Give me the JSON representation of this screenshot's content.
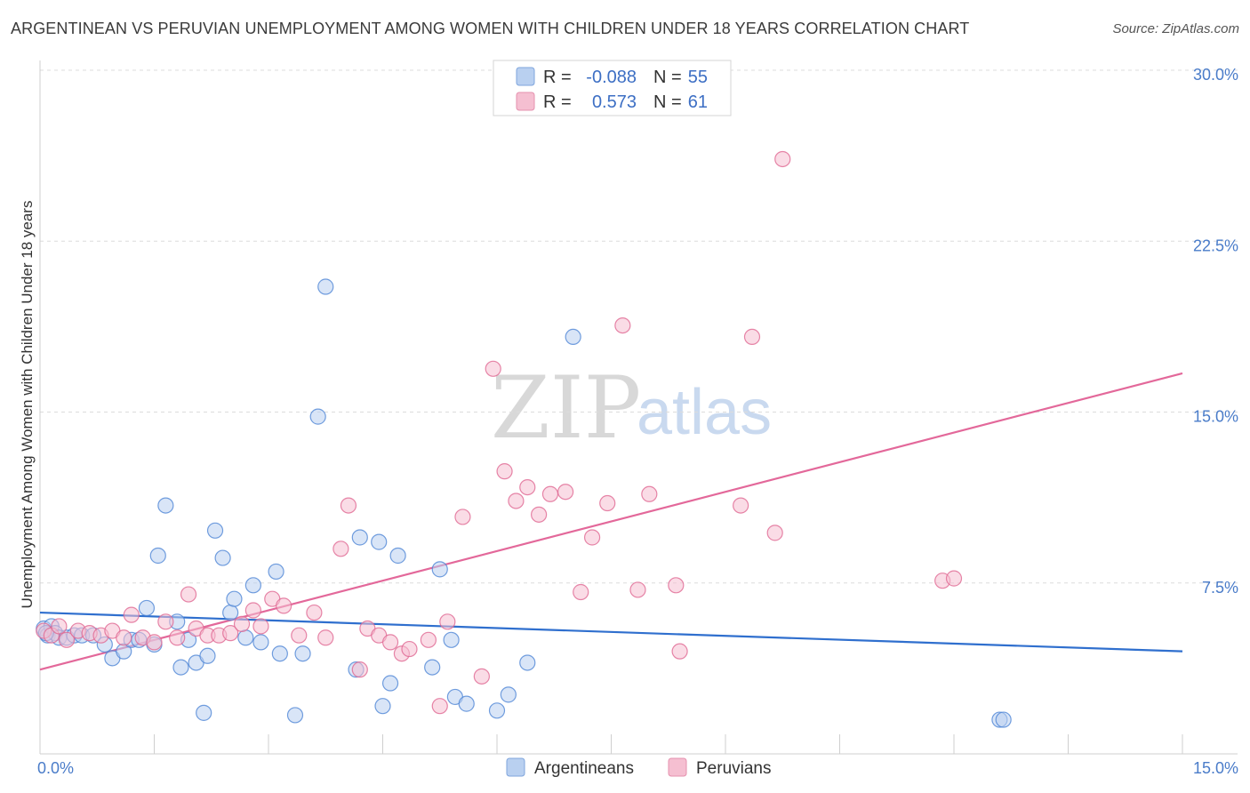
{
  "title": "ARGENTINEAN VS PERUVIAN UNEMPLOYMENT AMONG WOMEN WITH CHILDREN UNDER 18 YEARS CORRELATION CHART",
  "source": "Source: ZipAtlas.com",
  "watermark": {
    "zip": "ZIP",
    "atlas": "atlas"
  },
  "legend": {
    "rows": [
      {
        "r_label": "R =",
        "r_value": "-0.088",
        "n_label": "N =",
        "n_value": "55"
      },
      {
        "r_label": "R =",
        "r_value": "0.573",
        "n_label": "N =",
        "n_value": "61"
      }
    ]
  },
  "colors": {
    "blue": "#4f86d6",
    "blue_fill": "#b9d0f0",
    "pink": "#e06892",
    "pink_fill": "#f5bfd1"
  },
  "chart_data": {
    "type": "scatter",
    "title": "ARGENTINEAN VS PERUVIAN UNEMPLOYMENT AMONG WOMEN WITH CHILDREN UNDER 18 YEARS CORRELATION CHART",
    "xlabel": "",
    "ylabel": "Unemployment Among Women with Children Under 18 years",
    "xlim": [
      0,
      15
    ],
    "ylim": [
      0,
      30
    ],
    "x_tick_labels": [
      "0.0%",
      "15.0%"
    ],
    "y_ticks": [
      7.5,
      15.0,
      22.5,
      30.0
    ],
    "y_tick_labels": [
      "7.5%",
      "15.0%",
      "22.5%",
      "30.0%"
    ],
    "grid": true,
    "series": [
      {
        "name": "Argentineans",
        "trend": {
          "x": [
            0,
            15
          ],
          "y": [
            6.2,
            4.5
          ]
        },
        "points": [
          [
            0.05,
            5.5
          ],
          [
            0.1,
            5.2
          ],
          [
            0.15,
            5.6
          ],
          [
            0.2,
            5.3
          ],
          [
            0.25,
            5.1
          ],
          [
            0.35,
            5.1
          ],
          [
            0.45,
            5.2
          ],
          [
            0.55,
            5.2
          ],
          [
            0.7,
            5.2
          ],
          [
            0.85,
            4.8
          ],
          [
            0.95,
            4.2
          ],
          [
            1.1,
            4.5
          ],
          [
            1.2,
            5.0
          ],
          [
            1.3,
            5.0
          ],
          [
            1.4,
            6.4
          ],
          [
            1.5,
            4.8
          ],
          [
            1.55,
            8.7
          ],
          [
            1.65,
            10.9
          ],
          [
            1.8,
            5.8
          ],
          [
            1.85,
            3.8
          ],
          [
            1.95,
            5.0
          ],
          [
            2.05,
            4.0
          ],
          [
            2.15,
            1.8
          ],
          [
            2.2,
            4.3
          ],
          [
            2.3,
            9.8
          ],
          [
            2.4,
            8.6
          ],
          [
            2.5,
            6.2
          ],
          [
            2.55,
            6.8
          ],
          [
            2.7,
            5.1
          ],
          [
            2.8,
            7.4
          ],
          [
            2.9,
            4.9
          ],
          [
            3.1,
            8.0
          ],
          [
            3.15,
            4.4
          ],
          [
            3.35,
            1.7
          ],
          [
            3.45,
            4.4
          ],
          [
            3.65,
            14.8
          ],
          [
            3.75,
            20.5
          ],
          [
            4.15,
            3.7
          ],
          [
            4.2,
            9.5
          ],
          [
            4.45,
            9.3
          ],
          [
            4.5,
            2.1
          ],
          [
            4.6,
            3.1
          ],
          [
            4.7,
            8.7
          ],
          [
            5.15,
            3.8
          ],
          [
            5.25,
            8.1
          ],
          [
            5.4,
            5.0
          ],
          [
            5.45,
            2.5
          ],
          [
            5.6,
            2.2
          ],
          [
            6.0,
            1.9
          ],
          [
            6.15,
            2.6
          ],
          [
            6.4,
            4.0
          ],
          [
            7.0,
            18.3
          ],
          [
            12.6,
            1.5
          ],
          [
            12.65,
            1.5
          ],
          [
            0.08,
            5.3
          ]
        ]
      },
      {
        "name": "Peruvians",
        "trend": {
          "x": [
            0,
            15
          ],
          "y": [
            3.7,
            16.7
          ]
        },
        "points": [
          [
            0.05,
            5.4
          ],
          [
            0.15,
            5.2
          ],
          [
            0.25,
            5.6
          ],
          [
            0.35,
            5.0
          ],
          [
            0.5,
            5.4
          ],
          [
            0.65,
            5.3
          ],
          [
            0.8,
            5.2
          ],
          [
            0.95,
            5.4
          ],
          [
            1.1,
            5.1
          ],
          [
            1.2,
            6.1
          ],
          [
            1.35,
            5.1
          ],
          [
            1.5,
            4.9
          ],
          [
            1.65,
            5.8
          ],
          [
            1.8,
            5.1
          ],
          [
            1.95,
            7.0
          ],
          [
            2.05,
            5.5
          ],
          [
            2.2,
            5.2
          ],
          [
            2.35,
            5.2
          ],
          [
            2.5,
            5.3
          ],
          [
            2.65,
            5.7
          ],
          [
            2.8,
            6.3
          ],
          [
            2.9,
            5.6
          ],
          [
            3.05,
            6.8
          ],
          [
            3.2,
            6.5
          ],
          [
            3.4,
            5.2
          ],
          [
            3.6,
            6.2
          ],
          [
            3.75,
            5.1
          ],
          [
            3.95,
            9.0
          ],
          [
            4.05,
            10.9
          ],
          [
            4.2,
            3.7
          ],
          [
            4.3,
            5.5
          ],
          [
            4.45,
            5.2
          ],
          [
            4.6,
            4.9
          ],
          [
            4.75,
            4.4
          ],
          [
            4.85,
            4.6
          ],
          [
            5.1,
            5.0
          ],
          [
            5.25,
            2.1
          ],
          [
            5.35,
            5.8
          ],
          [
            5.55,
            10.4
          ],
          [
            5.8,
            3.4
          ],
          [
            5.95,
            16.9
          ],
          [
            6.1,
            12.4
          ],
          [
            6.25,
            11.1
          ],
          [
            6.4,
            11.7
          ],
          [
            6.55,
            10.5
          ],
          [
            6.7,
            11.4
          ],
          [
            6.9,
            11.5
          ],
          [
            7.1,
            7.1
          ],
          [
            7.25,
            9.5
          ],
          [
            7.45,
            11.0
          ],
          [
            7.65,
            18.8
          ],
          [
            7.85,
            7.2
          ],
          [
            8.0,
            11.4
          ],
          [
            8.35,
            7.4
          ],
          [
            8.4,
            4.5
          ],
          [
            9.2,
            10.9
          ],
          [
            9.35,
            18.3
          ],
          [
            9.65,
            9.7
          ],
          [
            9.75,
            26.1
          ],
          [
            11.85,
            7.6
          ],
          [
            12.0,
            7.7
          ]
        ]
      }
    ]
  },
  "bottom_legend": [
    "Argentineans",
    "Peruvians"
  ]
}
